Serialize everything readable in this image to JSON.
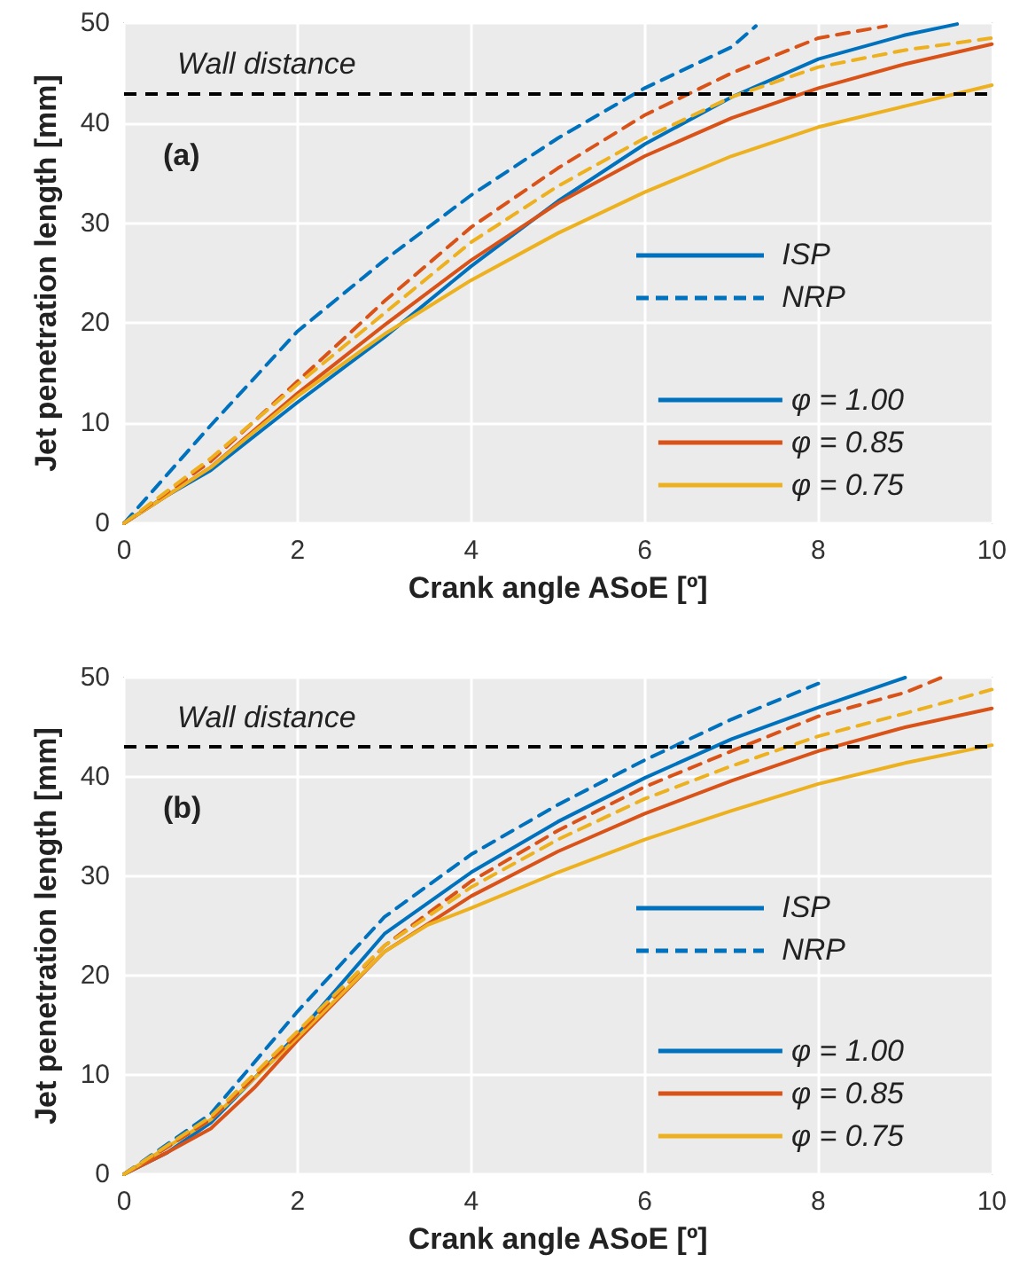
{
  "chart_data": [
    {
      "type": "line",
      "xlabel": "Crank angle ASoE [º]",
      "ylabel": "Jet penetration length [mm]",
      "xlim": [
        0,
        10
      ],
      "ylim": [
        0,
        50
      ],
      "xticks": [
        0,
        2,
        4,
        6,
        8,
        10
      ],
      "yticks": [
        0,
        10,
        20,
        30,
        40,
        50
      ],
      "grid": true,
      "legend": "bottom right",
      "marker": "none",
      "annotations": [
        "(a)",
        "ISP",
        "NRP"
      ],
      "ref_lines": [
        {
          "axis": "y",
          "value": 43,
          "label": "Wall distance",
          "color": "#000000",
          "line_style": "dashed"
        }
      ],
      "series": [
        {
          "name": "φ = 1.00",
          "color": "#0072bd",
          "line_style": "solid",
          "x": [
            0,
            0.48,
            1,
            2,
            3,
            4,
            5,
            6,
            7,
            8,
            9,
            9.6
          ],
          "values": [
            0,
            2.7,
            5.3,
            12.1,
            18.6,
            25.7,
            32.2,
            37.9,
            42.6,
            46.4,
            48.8,
            49.9
          ]
        },
        {
          "name": "φ = 0.85",
          "color": "#d95319",
          "line_style": "solid",
          "x": [
            0,
            1,
            2,
            3,
            4,
            5,
            6,
            7,
            8,
            9,
            10
          ],
          "values": [
            0,
            5.6,
            13.0,
            19.8,
            26.3,
            32.0,
            36.7,
            40.5,
            43.5,
            45.9,
            47.9
          ]
        },
        {
          "name": "φ = 0.75",
          "color": "#edb120",
          "line_style": "solid",
          "x": [
            0,
            1,
            2,
            3,
            4,
            5,
            6,
            7,
            8,
            9,
            10
          ],
          "values": [
            0,
            5.6,
            12.7,
            18.9,
            24.3,
            29.0,
            33.1,
            36.7,
            39.6,
            41.7,
            43.8
          ]
        },
        {
          "color": "#0072bd",
          "line_style": "dashed",
          "x": [
            0,
            1,
            2,
            3,
            4,
            5,
            6,
            7,
            7.28
          ],
          "values": [
            0,
            9.8,
            19.2,
            26.3,
            32.8,
            38.5,
            43.5,
            47.6,
            49.7
          ]
        },
        {
          "color": "#d95319",
          "line_style": "dashed",
          "x": [
            0,
            1,
            2,
            3,
            4,
            5,
            6,
            7,
            8,
            8.78
          ],
          "values": [
            0,
            6.2,
            14.2,
            22.2,
            29.6,
            35.5,
            40.8,
            45.0,
            48.5,
            49.7
          ]
        },
        {
          "color": "#edb120",
          "line_style": "dashed",
          "x": [
            0,
            1,
            2,
            3,
            4,
            5,
            6,
            7,
            8,
            9,
            10
          ],
          "values": [
            0,
            6.5,
            13.9,
            21.0,
            28.1,
            33.7,
            38.5,
            42.6,
            45.6,
            47.3,
            48.5
          ]
        }
      ]
    },
    {
      "type": "line",
      "xlabel": "Crank angle ASoE [º]",
      "ylabel": "Jet penetration length [mm]",
      "xlim": [
        0,
        10
      ],
      "ylim": [
        0,
        50
      ],
      "xticks": [
        0,
        2,
        4,
        6,
        8,
        10
      ],
      "yticks": [
        0,
        10,
        20,
        30,
        40,
        50
      ],
      "grid": true,
      "legend": "bottom right",
      "marker": "none",
      "annotations": [
        "(b)",
        "ISP",
        "NRP"
      ],
      "ref_lines": [
        {
          "axis": "y",
          "value": 43,
          "label": "Wall distance",
          "color": "#000000",
          "line_style": "dashed"
        }
      ],
      "series": [
        {
          "name": "φ = 1.00",
          "color": "#0072bd",
          "line_style": "solid",
          "x": [
            0,
            0.5,
            1,
            2,
            3,
            4,
            5,
            6,
            7,
            8,
            9
          ],
          "values": [
            0,
            2.2,
            5.2,
            14.1,
            24.2,
            30.4,
            35.5,
            39.9,
            43.8,
            47.0,
            50
          ]
        },
        {
          "name": "φ = 0.85",
          "color": "#d95319",
          "line_style": "solid",
          "x": [
            0,
            0.5,
            1,
            1.5,
            2,
            3,
            4,
            5,
            6,
            7,
            8,
            9,
            10
          ],
          "values": [
            0,
            2.2,
            4.6,
            8.7,
            13.5,
            22.4,
            28.0,
            32.5,
            36.3,
            39.6,
            42.6,
            45.0,
            46.9
          ]
        },
        {
          "name": "φ = 0.75",
          "color": "#edb120",
          "line_style": "solid",
          "x": [
            0,
            1,
            2,
            3,
            3.5,
            4,
            5,
            6,
            7,
            8,
            9,
            10
          ],
          "values": [
            0,
            5.5,
            13.8,
            22.4,
            25.1,
            26.8,
            30.4,
            33.7,
            36.6,
            39.3,
            41.4,
            43.2
          ]
        },
        {
          "color": "#0072bd",
          "line_style": "dashed",
          "x": [
            0,
            1,
            2,
            3,
            4,
            5,
            6,
            7,
            8
          ],
          "values": [
            0,
            6.1,
            16.4,
            25.9,
            32.2,
            37.2,
            41.7,
            45.8,
            49.4
          ]
        },
        {
          "color": "#d95319",
          "line_style": "dashed",
          "x": [
            0,
            1,
            2,
            3,
            4,
            5,
            6,
            7,
            8,
            9,
            9.42
          ],
          "values": [
            0,
            5.5,
            14.1,
            23.0,
            29.5,
            34.6,
            39.0,
            42.6,
            46.1,
            48.5,
            50
          ]
        },
        {
          "color": "#edb120",
          "line_style": "dashed",
          "x": [
            0,
            1,
            2,
            3,
            4,
            5,
            6,
            7,
            8,
            9,
            10
          ],
          "values": [
            0,
            5.8,
            14.4,
            23.0,
            28.9,
            33.7,
            37.8,
            41.1,
            44.1,
            46.4,
            48.8
          ]
        }
      ]
    }
  ]
}
